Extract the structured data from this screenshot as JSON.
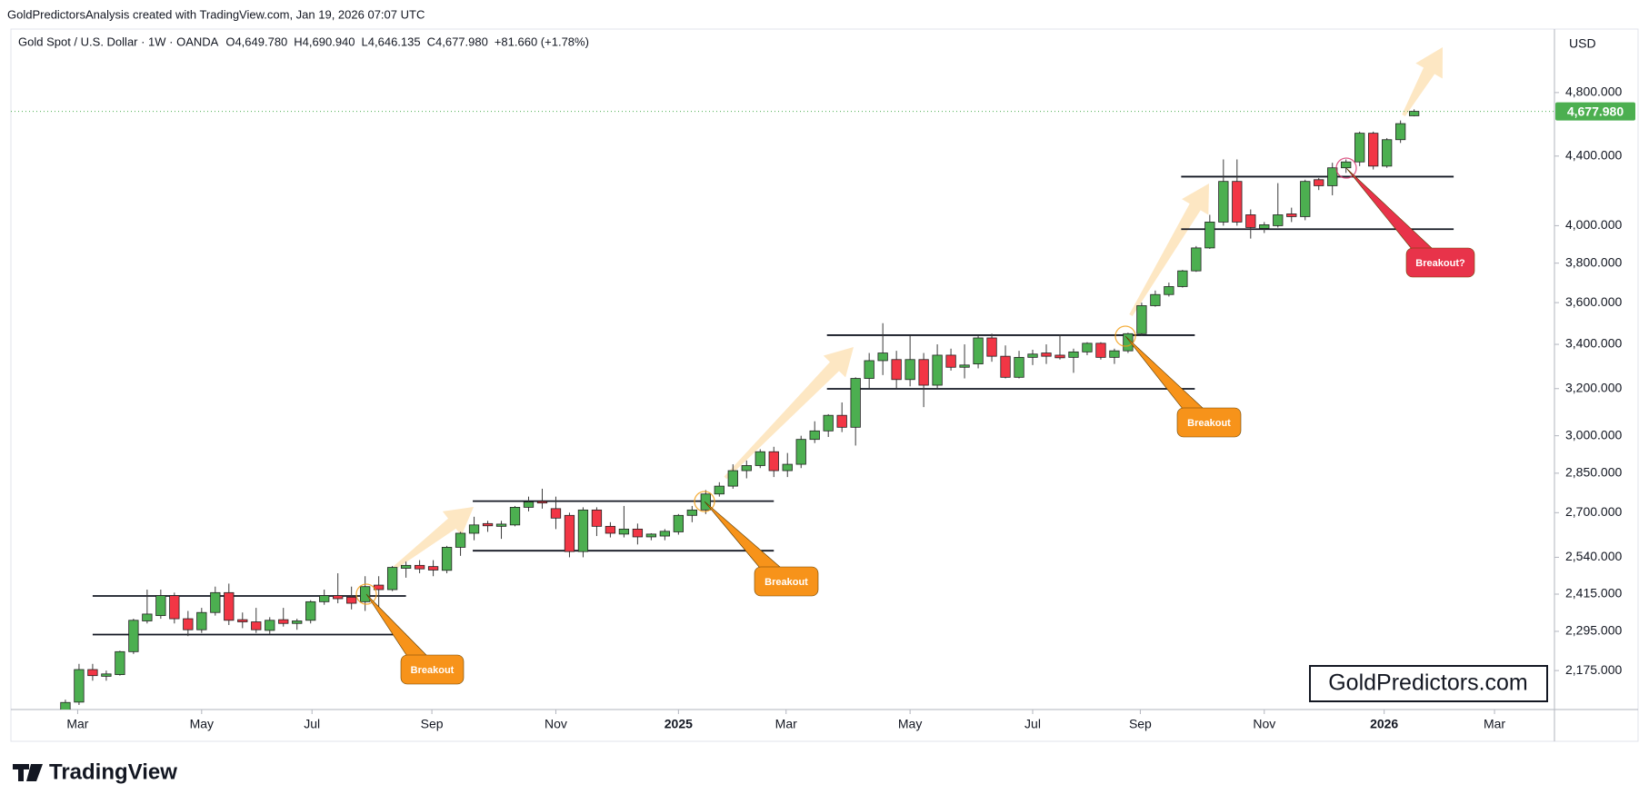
{
  "chart_data": {
    "type": "candlestick",
    "header": "GoldPredictorsAnalysis created with TradingView.com, Jan 19, 2026 07:07 UTC",
    "legend_text": "Gold Spot / U.S. Dollar · 1W · OANDA",
    "legend_values": [
      "O4,649.780",
      "H4,690.940",
      "L4,646.135",
      "C4,677.980",
      "+81.660 (+1.78%)"
    ],
    "currency": "USD",
    "brand": "TradingView",
    "watermark": "GoldPredictors.com",
    "log_scale": true,
    "up_color": "#4caf50",
    "down_color": "#f23645",
    "ylim": [
      2062,
      5236
    ],
    "yticks": [
      {
        "value": 2175,
        "label": "2,175.000"
      },
      {
        "value": 2295,
        "label": "2,295.000"
      },
      {
        "value": 2415,
        "label": "2,415.000"
      },
      {
        "value": 2540,
        "label": "2,540.000"
      },
      {
        "value": 2700,
        "label": "2,700.000"
      },
      {
        "value": 2850,
        "label": "2,850.000"
      },
      {
        "value": 3000,
        "label": "3,000.000"
      },
      {
        "value": 3200,
        "label": "3,200.000"
      },
      {
        "value": 3400,
        "label": "3,400.000"
      },
      {
        "value": 3600,
        "label": "3,600.000"
      },
      {
        "value": 3800,
        "label": "3,800.000"
      },
      {
        "value": 4000,
        "label": "4,000.000"
      },
      {
        "value": 4400,
        "label": "4,400.000"
      },
      {
        "value": 4800,
        "label": "4,800.000"
      }
    ],
    "xlim": [
      -4,
      109.3
    ],
    "xticks": [
      {
        "value": 0.9,
        "label": "Mar"
      },
      {
        "value": 10,
        "label": "May"
      },
      {
        "value": 18.1,
        "label": "Jul"
      },
      {
        "value": 26.9,
        "label": "Sep"
      },
      {
        "value": 36,
        "label": "Nov"
      },
      {
        "value": 45,
        "label": "2025"
      },
      {
        "value": 52.9,
        "label": "Mar"
      },
      {
        "value": 62,
        "label": "May"
      },
      {
        "value": 71,
        "label": "Jul"
      },
      {
        "value": 78.9,
        "label": "Sep"
      },
      {
        "value": 88,
        "label": "Nov"
      },
      {
        "value": 96.8,
        "label": "2026"
      },
      {
        "value": 104.9,
        "label": "Mar"
      }
    ],
    "last_price": {
      "value": 4677.98,
      "label": "4,677.980"
    },
    "levels": [
      {
        "value": 2409,
        "from": 2,
        "to": 25
      },
      {
        "value": 2285,
        "from": 2,
        "to": 25
      },
      {
        "value": 2743,
        "from": 29.9,
        "to": 52
      },
      {
        "value": 2563,
        "from": 29.9,
        "to": 52
      },
      {
        "value": 3443,
        "from": 55.9,
        "to": 82.9
      },
      {
        "value": 3199,
        "from": 55.9,
        "to": 82.9
      },
      {
        "value": 4278,
        "from": 81.9,
        "to": 101.9
      },
      {
        "value": 3981,
        "from": 81.9,
        "to": 101.9
      }
    ],
    "annotations": [
      "Breakout",
      "Breakout",
      "Breakout",
      "Breakout?"
    ],
    "ohlc": [
      [
        2035,
        2090,
        2025,
        2082
      ],
      [
        2083,
        2195,
        2075,
        2178
      ],
      [
        2178,
        2195,
        2145,
        2160
      ],
      [
        2158,
        2175,
        2145,
        2165
      ],
      [
        2163,
        2235,
        2160,
        2232
      ],
      [
        2232,
        2335,
        2225,
        2330
      ],
      [
        2328,
        2430,
        2320,
        2350
      ],
      [
        2345,
        2430,
        2335,
        2410
      ],
      [
        2410,
        2420,
        2320,
        2335
      ],
      [
        2335,
        2360,
        2280,
        2300
      ],
      [
        2300,
        2370,
        2290,
        2355
      ],
      [
        2355,
        2440,
        2345,
        2420
      ],
      [
        2420,
        2450,
        2315,
        2330
      ],
      [
        2332,
        2355,
        2305,
        2325
      ],
      [
        2325,
        2370,
        2290,
        2300
      ],
      [
        2298,
        2340,
        2285,
        2330
      ],
      [
        2332,
        2370,
        2310,
        2320
      ],
      [
        2320,
        2335,
        2300,
        2328
      ],
      [
        2330,
        2395,
        2320,
        2390
      ],
      [
        2390,
        2430,
        2380,
        2410
      ],
      [
        2410,
        2485,
        2385,
        2400
      ],
      [
        2405,
        2440,
        2365,
        2385
      ],
      [
        2390,
        2475,
        2360,
        2440
      ],
      [
        2445,
        2475,
        2370,
        2430
      ],
      [
        2430,
        2510,
        2425,
        2505
      ],
      [
        2502,
        2525,
        2470,
        2512
      ],
      [
        2512,
        2530,
        2485,
        2500
      ],
      [
        2508,
        2530,
        2475,
        2496
      ],
      [
        2495,
        2580,
        2485,
        2575
      ],
      [
        2575,
        2630,
        2545,
        2625
      ],
      [
        2625,
        2685,
        2600,
        2655
      ],
      [
        2660,
        2670,
        2630,
        2652
      ],
      [
        2650,
        2670,
        2605,
        2658
      ],
      [
        2655,
        2725,
        2650,
        2720
      ],
      [
        2720,
        2760,
        2705,
        2740
      ],
      [
        2742,
        2790,
        2715,
        2736
      ],
      [
        2715,
        2760,
        2640,
        2680
      ],
      [
        2690,
        2700,
        2540,
        2560
      ],
      [
        2560,
        2720,
        2540,
        2710
      ],
      [
        2710,
        2720,
        2615,
        2650
      ],
      [
        2650,
        2665,
        2610,
        2625
      ],
      [
        2622,
        2725,
        2610,
        2640
      ],
      [
        2640,
        2660,
        2585,
        2612
      ],
      [
        2612,
        2625,
        2600,
        2622
      ],
      [
        2615,
        2640,
        2600,
        2632
      ],
      [
        2630,
        2695,
        2620,
        2690
      ],
      [
        2690,
        2725,
        2665,
        2710
      ],
      [
        2710,
        2785,
        2695,
        2770
      ],
      [
        2770,
        2815,
        2760,
        2800
      ],
      [
        2800,
        2885,
        2790,
        2860
      ],
      [
        2860,
        2900,
        2830,
        2880
      ],
      [
        2880,
        2945,
        2870,
        2935
      ],
      [
        2935,
        2955,
        2835,
        2860
      ],
      [
        2860,
        2930,
        2835,
        2885
      ],
      [
        2885,
        3000,
        2870,
        2985
      ],
      [
        2985,
        3060,
        2970,
        3020
      ],
      [
        3020,
        3090,
        2995,
        3085
      ],
      [
        3085,
        3140,
        3015,
        3035
      ],
      [
        3035,
        3250,
        2960,
        3245
      ],
      [
        3245,
        3360,
        3200,
        3325
      ],
      [
        3325,
        3500,
        3260,
        3360
      ],
      [
        3330,
        3370,
        3200,
        3240
      ],
      [
        3240,
        3440,
        3210,
        3330
      ],
      [
        3330,
        3360,
        3120,
        3215
      ],
      [
        3215,
        3400,
        3200,
        3350
      ],
      [
        3350,
        3380,
        3280,
        3295
      ],
      [
        3295,
        3400,
        3245,
        3305
      ],
      [
        3310,
        3440,
        3290,
        3430
      ],
      [
        3430,
        3450,
        3320,
        3345
      ],
      [
        3345,
        3395,
        3245,
        3250
      ],
      [
        3250,
        3370,
        3245,
        3340
      ],
      [
        3340,
        3375,
        3305,
        3355
      ],
      [
        3360,
        3400,
        3310,
        3345
      ],
      [
        3350,
        3445,
        3330,
        3338
      ],
      [
        3340,
        3380,
        3270,
        3365
      ],
      [
        3365,
        3410,
        3350,
        3405
      ],
      [
        3405,
        3410,
        3330,
        3340
      ],
      [
        3340,
        3380,
        3310,
        3370
      ],
      [
        3370,
        3455,
        3360,
        3450
      ],
      [
        3450,
        3600,
        3440,
        3585
      ],
      [
        3585,
        3660,
        3580,
        3640
      ],
      [
        3640,
        3700,
        3630,
        3680
      ],
      [
        3680,
        3765,
        3675,
        3760
      ],
      [
        3760,
        3890,
        3755,
        3880
      ],
      [
        3880,
        4060,
        3875,
        4020
      ],
      [
        4020,
        4380,
        4000,
        4250
      ],
      [
        4250,
        4380,
        4000,
        4020
      ],
      [
        4060,
        4090,
        3930,
        3990
      ],
      [
        3985,
        4020,
        3960,
        4005
      ],
      [
        4000,
        4240,
        3990,
        4060
      ],
      [
        4065,
        4100,
        4020,
        4050
      ],
      [
        4050,
        4260,
        4030,
        4250
      ],
      [
        4260,
        4270,
        4200,
        4225
      ],
      [
        4225,
        4360,
        4170,
        4330
      ],
      [
        4330,
        4380,
        4300,
        4365
      ],
      [
        4365,
        4550,
        4340,
        4540
      ],
      [
        4540,
        4550,
        4320,
        4340
      ],
      [
        4340,
        4510,
        4330,
        4500
      ],
      [
        4500,
        4620,
        4480,
        4600
      ],
      [
        4649.78,
        4690.94,
        4646.135,
        4677.98
      ]
    ]
  }
}
